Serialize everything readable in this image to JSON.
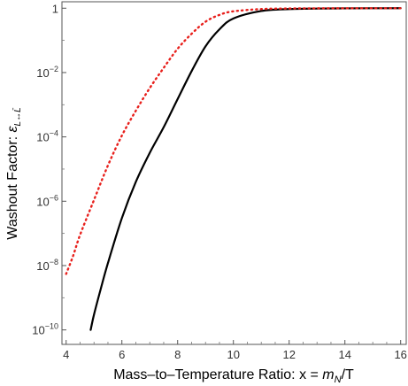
{
  "chart_data": {
    "type": "line",
    "xlabel": "Mass-to-Temperature Ratio:  x = m_N/T",
    "ylabel": "Washout Factor:  ε_{L↔L̄}",
    "xlabel_parts": {
      "prefix": "Mass–to–Temperature Ratio:  x = ",
      "m": "m",
      "sub": "N",
      "suffix": "/T"
    },
    "ylabel_parts": {
      "prefix": "Washout Factor:  ",
      "eps": "ε",
      "sub": "L↔L̄"
    },
    "x_scale": "linear",
    "y_scale": "log",
    "xlim": [
      3.85,
      16.2
    ],
    "ylim_log10": [
      -10.45,
      0.2
    ],
    "x_ticks": [
      4,
      6,
      8,
      10,
      12,
      14,
      16
    ],
    "y_ticks": [
      {
        "value": 1,
        "base": "1",
        "exp": ""
      },
      {
        "value": 0.01,
        "base": "10",
        "exp": "−2"
      },
      {
        "value": 0.0001,
        "base": "10",
        "exp": "−4"
      },
      {
        "value": 1e-06,
        "base": "10",
        "exp": "−6"
      },
      {
        "value": 1e-08,
        "base": "10",
        "exp": "−8"
      },
      {
        "value": 1e-10,
        "base": "10",
        "exp": "−10"
      }
    ],
    "grid": false,
    "legend": "none",
    "series": [
      {
        "style": "solid",
        "color": "#000000",
        "x": [
          4.88,
          5.0,
          5.25,
          5.5,
          6.0,
          6.5,
          7.0,
          7.5,
          8.0,
          8.5,
          9.0,
          9.5,
          10.0,
          11.0,
          12.0,
          13.0,
          14.0,
          15.0,
          16.0
        ],
        "y": [
          1e-10,
          3e-10,
          2e-09,
          1.2e-08,
          3e-07,
          4e-06,
          3.2e-05,
          0.0002,
          0.0015,
          0.011,
          0.065,
          0.22,
          0.48,
          0.82,
          0.94,
          0.975,
          0.99,
          0.996,
          0.999
        ]
      },
      {
        "style": "dotted",
        "color": "#e8201c",
        "x": [
          4.0,
          4.25,
          4.5,
          5.0,
          5.5,
          6.0,
          6.5,
          7.0,
          7.5,
          8.0,
          8.5,
          9.0,
          9.5,
          10.0,
          11.0,
          12.0,
          13.0,
          14.0,
          15.0,
          16.0
        ],
        "y": [
          5.5e-09,
          2e-08,
          9e-08,
          1.1e-06,
          1.3e-05,
          0.00011,
          0.00065,
          0.0033,
          0.014,
          0.055,
          0.16,
          0.38,
          0.62,
          0.8,
          0.94,
          0.98,
          0.993,
          0.997,
          0.999,
          1.0
        ]
      }
    ]
  }
}
